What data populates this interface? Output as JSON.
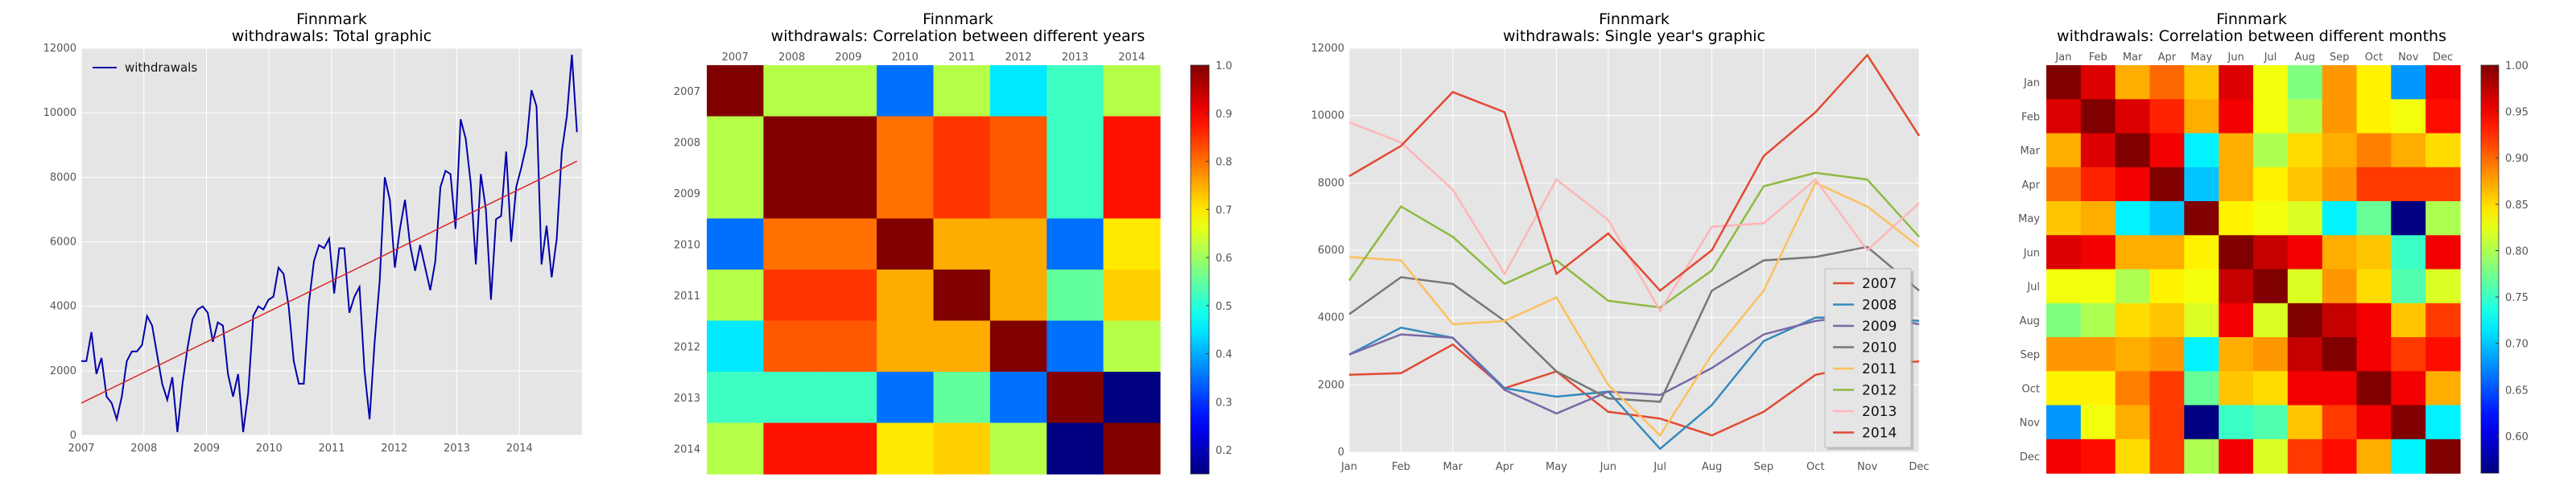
{
  "colors": {
    "panel_bg": "#e5e5e5",
    "grid": "#ffffff",
    "axis_text": "#555555",
    "title_text": "#000000",
    "withdrawals_line": "#0000aa",
    "trend_line": "#d62728"
  },
  "chart_data": [
    {
      "type": "line",
      "title": "Finnmark",
      "subtitle": "withdrawals: Total graphic",
      "xlabel": "",
      "ylabel": "",
      "x_ticks": [
        "2007",
        "2008",
        "2009",
        "2010",
        "2011",
        "2012",
        "2013",
        "2014"
      ],
      "xlim": [
        2007,
        2015
      ],
      "ylim": [
        0,
        12000
      ],
      "y_ticks": [
        "0",
        "2000",
        "4000",
        "6000",
        "8000",
        "10000",
        "12000"
      ],
      "grid": true,
      "legend_position": "top-left",
      "series": [
        {
          "name": "withdrawals",
          "color": "#0000aa",
          "values": [
            2300,
            2300,
            3200,
            1900,
            2400,
            1200,
            1000,
            500,
            1200,
            2300,
            2600,
            2600,
            2800,
            3700,
            3400,
            2500,
            1600,
            1100,
            1800,
            100,
            1600,
            2700,
            3600,
            3900,
            4000,
            3800,
            2900,
            3500,
            3400,
            1900,
            1200,
            1900,
            100,
            1300,
            3700,
            4000,
            3900,
            4200,
            4300,
            5200,
            5000,
            4000,
            2300,
            1600,
            1600,
            4100,
            5400,
            5900,
            5800,
            6100,
            4400,
            5800,
            5800,
            3800,
            4300,
            4600,
            2000,
            500,
            2900,
            4800,
            8000,
            7300,
            5200,
            6400,
            7300,
            5900,
            5100,
            5900,
            5200,
            4500,
            5400,
            7700,
            8200,
            8100,
            6400,
            9800,
            9200,
            7800,
            5300,
            8100,
            7000,
            4200,
            6700,
            6800,
            8800,
            6000,
            7700,
            8300,
            9000,
            10700,
            10200,
            5300,
            6500,
            4900,
            6100,
            8800,
            9900,
            11800,
            9400
          ]
        },
        {
          "name": "",
          "color": "#d62728",
          "kind": "trend",
          "values": [
            1000,
            8500
          ]
        }
      ]
    },
    {
      "type": "heatmap",
      "title": "Finnmark",
      "subtitle": "withdrawals: Correlation between different years",
      "x_labels": [
        "2007",
        "2008",
        "2009",
        "2010",
        "2011",
        "2012",
        "2013",
        "2014"
      ],
      "y_labels": [
        "2007",
        "2008",
        "2009",
        "2010",
        "2011",
        "2012",
        "2013",
        "2014"
      ],
      "colorbar_ticks": [
        "0.2",
        "0.3",
        "0.4",
        "0.5",
        "0.6",
        "0.7",
        "0.8",
        "0.9",
        "1.0"
      ],
      "vmin": 0.15,
      "vmax": 1.0,
      "matrix": [
        [
          1.0,
          0.62,
          0.62,
          0.35,
          0.62,
          0.45,
          0.52,
          0.62
        ],
        [
          0.62,
          1.0,
          1.0,
          0.8,
          0.85,
          0.82,
          0.52,
          0.88
        ],
        [
          0.62,
          1.0,
          1.0,
          0.8,
          0.85,
          0.82,
          0.52,
          0.88
        ],
        [
          0.35,
          0.8,
          0.8,
          1.0,
          0.75,
          0.75,
          0.35,
          0.7
        ],
        [
          0.62,
          0.85,
          0.85,
          0.75,
          1.0,
          0.75,
          0.55,
          0.72
        ],
        [
          0.45,
          0.82,
          0.82,
          0.75,
          0.75,
          1.0,
          0.35,
          0.62
        ],
        [
          0.52,
          0.52,
          0.52,
          0.35,
          0.55,
          0.35,
          1.0,
          0.15
        ],
        [
          0.62,
          0.88,
          0.88,
          0.7,
          0.72,
          0.62,
          0.15,
          1.0
        ]
      ]
    },
    {
      "type": "line",
      "title": "Finnmark",
      "subtitle": "withdrawals: Single year's graphic",
      "x_ticks": [
        "Jan",
        "Feb",
        "Mar",
        "Apr",
        "May",
        "Jun",
        "Jul",
        "Aug",
        "Sep",
        "Oct",
        "Nov",
        "Dec"
      ],
      "ylim": [
        0,
        12000
      ],
      "y_ticks": [
        "0",
        "2000",
        "4000",
        "6000",
        "8000",
        "10000",
        "12000"
      ],
      "grid": true,
      "legend_position": "bottom-right",
      "series": [
        {
          "name": "2007",
          "color": "#e24a33",
          "values": [
            2300,
            2350,
            3200,
            1900,
            2400,
            1200,
            1000,
            500,
            1200,
            2300,
            2600,
            2700
          ]
        },
        {
          "name": "2008",
          "color": "#348abd",
          "values": [
            2900,
            3700,
            3400,
            1900,
            1650,
            1800,
            100,
            1400,
            3300,
            4000,
            4000,
            3900
          ]
        },
        {
          "name": "2009",
          "color": "#7a68a6",
          "values": [
            2900,
            3500,
            3400,
            1850,
            1150,
            1800,
            1700,
            2500,
            3500,
            3900,
            4100,
            3800
          ]
        },
        {
          "name": "2010",
          "color": "#777777",
          "values": [
            4100,
            5200,
            5000,
            3900,
            2400,
            1600,
            1500,
            4800,
            5700,
            5800,
            6100,
            4800
          ]
        },
        {
          "name": "2011",
          "color": "#fbc15e",
          "values": [
            5800,
            5700,
            3800,
            3900,
            4600,
            2000,
            500,
            2900,
            4800,
            8000,
            7300,
            6100
          ]
        },
        {
          "name": "2012",
          "color": "#8eba42",
          "values": [
            5100,
            7300,
            6400,
            5000,
            5700,
            4500,
            4300,
            5400,
            7900,
            8300,
            8100,
            6400
          ]
        },
        {
          "name": "2013",
          "color": "#ffb5b8",
          "values": [
            9800,
            9200,
            7800,
            5300,
            8100,
            6900,
            4200,
            6700,
            6800,
            8100,
            6000,
            7400
          ]
        },
        {
          "name": "2014",
          "color": "#e24a33",
          "values": [
            8200,
            9100,
            10700,
            10100,
            5300,
            6500,
            4800,
            6000,
            8800,
            10100,
            11800,
            9400
          ]
        }
      ]
    },
    {
      "type": "heatmap",
      "title": "Finnmark",
      "subtitle": "withdrawals: Correlation between different months",
      "x_labels": [
        "Jan",
        "Feb",
        "Mar",
        "Apr",
        "May",
        "Jun",
        "Jul",
        "Aug",
        "Sep",
        "Oct",
        "Nov",
        "Dec"
      ],
      "y_labels": [
        "Jan",
        "Feb",
        "Mar",
        "Apr",
        "May",
        "Jun",
        "Jul",
        "Aug",
        "Sep",
        "Oct",
        "Nov",
        "Dec"
      ],
      "colorbar_ticks": [
        "0.60",
        "0.65",
        "0.70",
        "0.75",
        "0.80",
        "0.85",
        "0.90",
        "0.95",
        "1.00"
      ],
      "vmin": 0.56,
      "vmax": 1.0,
      "matrix": [
        [
          1.0,
          0.96,
          0.87,
          0.9,
          0.86,
          0.96,
          0.83,
          0.78,
          0.88,
          0.84,
          0.68,
          0.95
        ],
        [
          0.96,
          1.0,
          0.96,
          0.93,
          0.87,
          0.95,
          0.83,
          0.8,
          0.88,
          0.84,
          0.83,
          0.94
        ],
        [
          0.87,
          0.96,
          1.0,
          0.95,
          0.72,
          0.87,
          0.8,
          0.85,
          0.87,
          0.89,
          0.87,
          0.85
        ],
        [
          0.9,
          0.93,
          0.95,
          1.0,
          0.7,
          0.87,
          0.84,
          0.86,
          0.88,
          0.92,
          0.92,
          0.92
        ],
        [
          0.86,
          0.87,
          0.72,
          0.7,
          1.0,
          0.84,
          0.83,
          0.82,
          0.72,
          0.77,
          0.56,
          0.8
        ],
        [
          0.96,
          0.95,
          0.87,
          0.87,
          0.84,
          1.0,
          0.97,
          0.95,
          0.87,
          0.86,
          0.75,
          0.95
        ],
        [
          0.83,
          0.83,
          0.8,
          0.84,
          0.83,
          0.97,
          1.0,
          0.82,
          0.88,
          0.85,
          0.76,
          0.82
        ],
        [
          0.78,
          0.8,
          0.85,
          0.86,
          0.82,
          0.95,
          0.82,
          1.0,
          0.97,
          0.95,
          0.86,
          0.92
        ],
        [
          0.88,
          0.88,
          0.87,
          0.88,
          0.72,
          0.87,
          0.88,
          0.97,
          1.0,
          0.95,
          0.92,
          0.94
        ],
        [
          0.84,
          0.84,
          0.89,
          0.92,
          0.77,
          0.86,
          0.85,
          0.95,
          0.95,
          1.0,
          0.95,
          0.87
        ],
        [
          0.68,
          0.83,
          0.87,
          0.92,
          0.56,
          0.75,
          0.76,
          0.86,
          0.92,
          0.95,
          1.0,
          0.72
        ],
        [
          0.95,
          0.94,
          0.85,
          0.92,
          0.8,
          0.95,
          0.82,
          0.92,
          0.94,
          0.87,
          0.72,
          1.0
        ]
      ]
    }
  ]
}
